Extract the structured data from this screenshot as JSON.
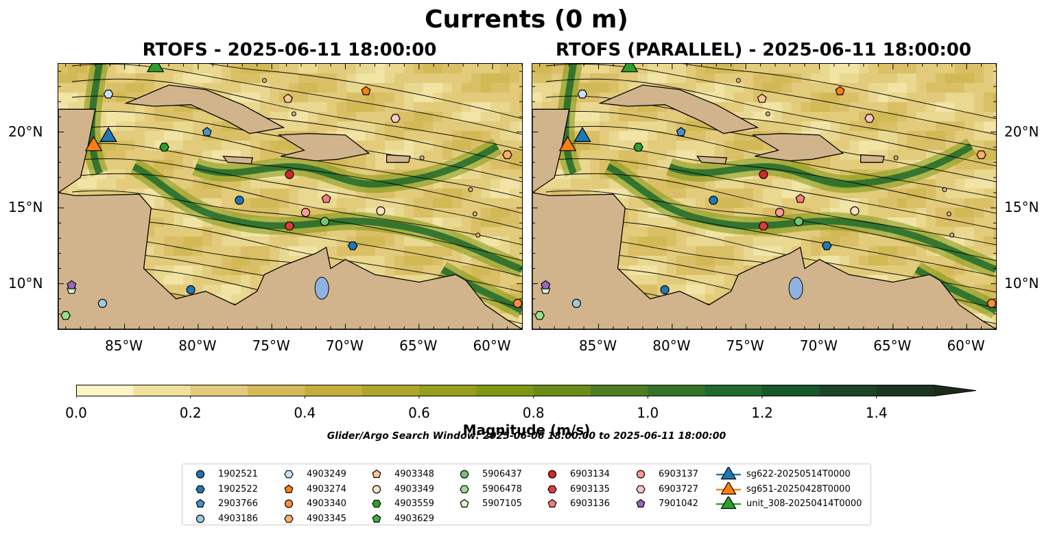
{
  "title": "Currents (0 m)",
  "panels": [
    {
      "title": "RTOFS - 2025-06-11 18:00:00"
    },
    {
      "title": "RTOFS (PARALLEL) - 2025-06-11 18:00:00"
    }
  ],
  "map": {
    "lon_range": [
      -89.5,
      -58
    ],
    "lat_range": [
      7,
      24.5
    ],
    "x_ticks": [
      "85°W",
      "80°W",
      "75°W",
      "70°W",
      "65°W",
      "60°W"
    ],
    "x_tick_values": [
      -85,
      -80,
      -75,
      -70,
      -65,
      -60
    ],
    "y_ticks": [
      "20°N",
      "15°N",
      "10°N"
    ],
    "y_tick_values": [
      20,
      15,
      10
    ],
    "land_color": "#d2b48c",
    "lake_color": "#8fb3e0"
  },
  "colorbar": {
    "label": "Magnitude (m/s)",
    "ticks": [
      "0.0",
      "0.2",
      "0.4",
      "0.6",
      "0.8",
      "1.0",
      "1.2",
      "1.4"
    ],
    "tick_values": [
      0,
      0.2,
      0.4,
      0.6,
      0.8,
      1.0,
      1.2,
      1.4
    ],
    "vmin": 0,
    "vmax": 1.5,
    "extend": "max",
    "colors": [
      "#fbf5c2",
      "#efe19c",
      "#e2cb7a",
      "#d5b858",
      "#c6ae3c",
      "#aea62a",
      "#959f1c",
      "#7e9714",
      "#6a8c16",
      "#4e7e22",
      "#357426",
      "#1f6a2c",
      "#19572d",
      "#1a4328",
      "#1c3424",
      "#1b2a1c"
    ]
  },
  "search_window": "Glider/Argo Search Window: 2025-06-06 18:00:00 to 2025-06-11 18:00:00",
  "legend": [
    {
      "label": "1902521",
      "marker": "circle",
      "color": "#1f77b4"
    },
    {
      "label": "1902522",
      "marker": "hexagon",
      "color": "#1f77b4"
    },
    {
      "label": "2903766",
      "marker": "pentagon",
      "color": "#4a90c8"
    },
    {
      "label": "4903186",
      "marker": "circle",
      "color": "#9ecae1"
    },
    {
      "label": "4903249",
      "marker": "hexagon",
      "color": "#c6e2f7"
    },
    {
      "label": "4903274",
      "marker": "pentagon",
      "color": "#ff7f0e"
    },
    {
      "label": "4903340",
      "marker": "circle",
      "color": "#fd8d3c"
    },
    {
      "label": "4903345",
      "marker": "hexagon",
      "color": "#fdae6b"
    },
    {
      "label": "4903348",
      "marker": "pentagon",
      "color": "#fdc592"
    },
    {
      "label": "4903349",
      "marker": "circle",
      "color": "#fde0c5"
    },
    {
      "label": "4903559",
      "marker": "hexagon",
      "color": "#2ca02c"
    },
    {
      "label": "4903629",
      "marker": "pentagon",
      "color": "#3cb043"
    },
    {
      "label": "5906437",
      "marker": "circle",
      "color": "#74c476"
    },
    {
      "label": "5906478",
      "marker": "hexagon",
      "color": "#98df8a"
    },
    {
      "label": "5907105",
      "marker": "pentagon",
      "color": "#d8f5d0"
    },
    {
      "label": "6903134",
      "marker": "circle",
      "color": "#d62728"
    },
    {
      "label": "6903135",
      "marker": "hexagon",
      "color": "#e03a3e"
    },
    {
      "label": "6903136",
      "marker": "pentagon",
      "color": "#f08080"
    },
    {
      "label": "6903137",
      "marker": "circle",
      "color": "#ff9896"
    },
    {
      "label": "6903727",
      "marker": "hexagon",
      "color": "#ffc4c4"
    },
    {
      "label": "7901042",
      "marker": "pentagon",
      "color": "#9467bd"
    },
    {
      "label": "sg622-20250514T0000",
      "marker": "triangle",
      "color": "#1f77b4"
    },
    {
      "label": "sg651-20250428T0000",
      "marker": "triangle",
      "color": "#ff7f0e"
    },
    {
      "label": "unit_308-20250414T0000",
      "marker": "triangle",
      "color": "#2ca02c"
    }
  ],
  "floats": [
    {
      "id": "1902521",
      "lon": -80.5,
      "lat": 9.6
    },
    {
      "id": "1902521",
      "lon": -77.2,
      "lat": 15.5
    },
    {
      "id": "1902522",
      "lon": -69.5,
      "lat": 12.5
    },
    {
      "id": "2903766",
      "lon": -79.4,
      "lat": 20.0
    },
    {
      "id": "4903186",
      "lon": -86.5,
      "lat": 8.7
    },
    {
      "id": "4903249",
      "lon": -86.1,
      "lat": 22.5
    },
    {
      "id": "4903274",
      "lon": -68.6,
      "lat": 22.7
    },
    {
      "id": "4903340",
      "lon": -58.3,
      "lat": 8.7
    },
    {
      "id": "4903345",
      "lon": -59.0,
      "lat": 18.5
    },
    {
      "id": "4903348",
      "lon": -73.9,
      "lat": 22.2
    },
    {
      "id": "4903349",
      "lon": -67.6,
      "lat": 14.8
    },
    {
      "id": "4903559",
      "lon": -82.3,
      "lat": 19.0
    },
    {
      "id": "5906437",
      "lon": -71.4,
      "lat": 14.1
    },
    {
      "id": "5906478",
      "lon": -89.0,
      "lat": 7.9
    },
    {
      "id": "5907105",
      "lon": -88.6,
      "lat": 9.6
    },
    {
      "id": "6903134",
      "lon": -73.8,
      "lat": 17.2
    },
    {
      "id": "6903135",
      "lon": -73.8,
      "lat": 13.8
    },
    {
      "id": "6903136",
      "lon": -71.3,
      "lat": 15.6
    },
    {
      "id": "6903137",
      "lon": -72.7,
      "lat": 14.7
    },
    {
      "id": "6903727",
      "lon": -66.6,
      "lat": 20.9
    },
    {
      "id": "7901042",
      "lon": -88.6,
      "lat": 9.9
    }
  ],
  "gliders": [
    {
      "id": "sg622-20250514T0000",
      "lon": -86.1,
      "lat": 19.8
    },
    {
      "id": "sg651-20250428T0000",
      "lon": -87.1,
      "lat": 19.2
    },
    {
      "id": "unit_308-20250414T0000",
      "lon": -82.9,
      "lat": 24.4
    }
  ]
}
